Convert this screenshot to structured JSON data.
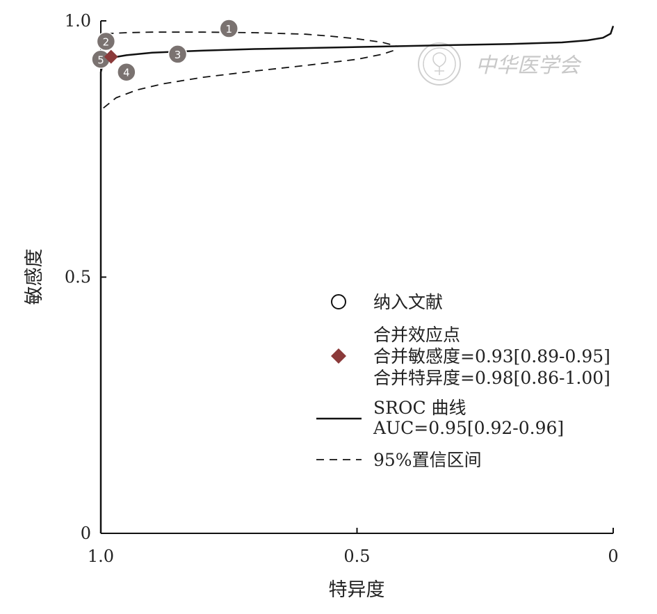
{
  "chart_data": {
    "type": "scatter",
    "xlabel": "特异度",
    "ylabel": "敏感度",
    "xlim": [
      1.0,
      0
    ],
    "ylim": [
      0,
      1.0
    ],
    "x_reversed": true,
    "x_ticks": [
      "1.0",
      "0.5",
      "0"
    ],
    "y_ticks": [
      "1.0",
      "0.5",
      "0"
    ],
    "studies": [
      {
        "label": "1",
        "specificity": 0.75,
        "sensitivity": 0.985
      },
      {
        "label": "2",
        "specificity": 0.99,
        "sensitivity": 0.96
      },
      {
        "label": "3",
        "specificity": 0.85,
        "sensitivity": 0.935
      },
      {
        "label": "4",
        "specificity": 0.95,
        "sensitivity": 0.9
      },
      {
        "label": "5",
        "specificity": 1.0,
        "sensitivity": 0.925
      }
    ],
    "pooled_point": {
      "specificity": 0.98,
      "sensitivity": 0.93
    },
    "sroc_curve": {
      "specificity": [
        1.0,
        1.0,
        1.0,
        0.995,
        0.98,
        0.95,
        0.9,
        0.8,
        0.7,
        0.6,
        0.5,
        0.4,
        0.3,
        0.2,
        0.1,
        0.05,
        0.02,
        0.005,
        0.0
      ],
      "sensitivity": [
        0.0,
        0.5,
        0.9,
        0.92,
        0.928,
        0.933,
        0.938,
        0.942,
        0.945,
        0.947,
        0.949,
        0.951,
        0.953,
        0.955,
        0.958,
        0.962,
        0.967,
        0.975,
        0.99
      ]
    },
    "ci_upper": {
      "specificity": [
        0.99,
        0.95,
        0.9,
        0.8,
        0.7,
        0.6,
        0.55,
        0.5,
        0.45,
        0.42
      ],
      "sensitivity": [
        0.975,
        0.977,
        0.978,
        0.978,
        0.977,
        0.974,
        0.97,
        0.965,
        0.958,
        0.95
      ]
    },
    "ci_lower": {
      "specificity": [
        0.995,
        0.97,
        0.93,
        0.88,
        0.8,
        0.7,
        0.6,
        0.5,
        0.45,
        0.42
      ],
      "sensitivity": [
        0.83,
        0.85,
        0.865,
        0.877,
        0.89,
        0.902,
        0.913,
        0.925,
        0.935,
        0.945
      ]
    },
    "legend": {
      "placement": "right-center",
      "studies_label": "纳入文献",
      "pooled_title": "合并效应点",
      "pooled_sens": "合并敏感度=0.93[0.89-0.95]",
      "pooled_spec": "合并特异度=0.98[0.86-1.00]",
      "sroc_title": "SROC  曲线",
      "auc": "AUC=0.95[0.92-0.96]",
      "ci_label": "95%置信区间"
    },
    "colors": {
      "study_marker": "#7a7270",
      "pooled_marker": "#8b3a3a",
      "curve": "#111111"
    }
  },
  "watermark": {
    "text": "中华医学会",
    "icon": "medical-association-seal-icon"
  }
}
